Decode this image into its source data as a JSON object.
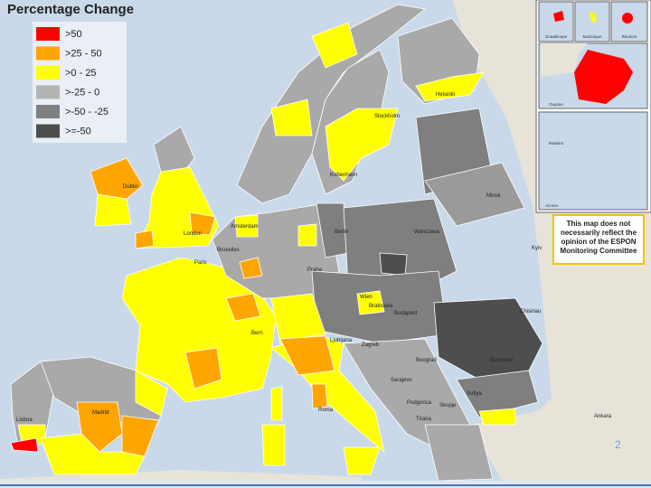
{
  "title": "Percentage Change",
  "legend": {
    "items": [
      {
        "label": ">50",
        "color": "#ff0000"
      },
      {
        "label": ">25 - 50",
        "color": "#ffa500"
      },
      {
        "label": ">0 - 25",
        "color": "#ffff00"
      },
      {
        "label": ">-25 - 0",
        "color": "#b4b4b4"
      },
      {
        "label": ">-50 - -25",
        "color": "#7f7f7f"
      },
      {
        "label": ">=-50",
        "color": "#4e4e4e"
      }
    ]
  },
  "note": [
    "This map does not",
    "necessarily reflect the",
    "opinion of the ESPON",
    "Monitoring Committee"
  ],
  "insets": [
    "Guadeloupe",
    "Martinique",
    "Réunion",
    "Guyane",
    "Madeira",
    "Acores"
  ],
  "cities": [
    "Helsinki",
    "Stockholm",
    "Kobenhavn",
    "Dublin",
    "London",
    "Amsterdam",
    "Berlin",
    "Warszawa",
    "Minsk",
    "Kyiv",
    "Praha",
    "Wien",
    "Bratislava",
    "Budapest",
    "Ljubljana",
    "Zagreb",
    "Beograd",
    "Sarajevo",
    "Podgorica",
    "Skopje",
    "Tirana",
    "Sofiya",
    "Bucuresti",
    "Chisinau",
    "Roma",
    "Madrid",
    "Lisboa",
    "Ankara",
    "Paris",
    "Bern",
    "Bruxelles"
  ],
  "slide_number": "2"
}
